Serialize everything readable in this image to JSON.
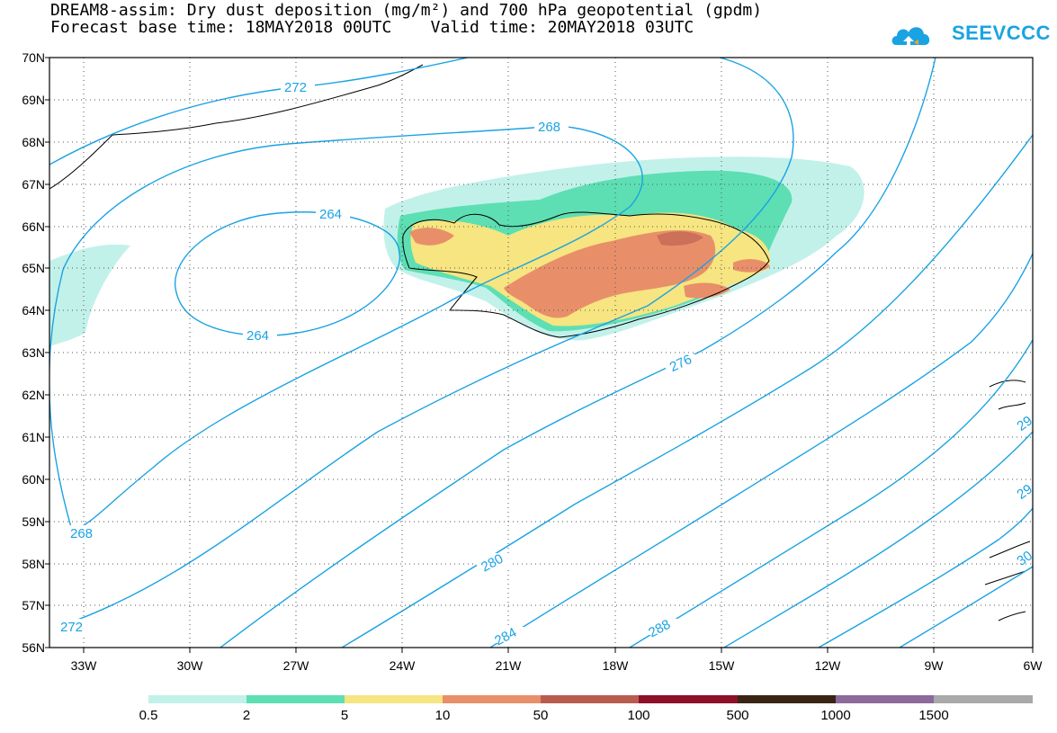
{
  "header": {
    "title_line1": "DREAM8-assim: Dry dust deposition (mg/m²) and 700 hPa geopotential (gpdm)",
    "title_line2": "Forecast base time: 18MAY2018 00UTC    Valid time: 20MAY2018 03UTC",
    "logo_text": "SEEVCCC"
  },
  "axes": {
    "lat_labels": [
      "70N",
      "69N",
      "68N",
      "67N",
      "66N",
      "65N",
      "64N",
      "63N",
      "62N",
      "61N",
      "60N",
      "59N",
      "58N",
      "57N",
      "56N"
    ],
    "lon_labels": [
      "33W",
      "30W",
      "27W",
      "24W",
      "21W",
      "18W",
      "15W",
      "12W",
      "9W",
      "6W"
    ]
  },
  "contours": {
    "labels": [
      "272",
      "268",
      "264",
      "264",
      "268",
      "276",
      "280",
      "284",
      "288",
      "272",
      "29",
      "29",
      "30"
    ]
  },
  "legend": {
    "labels": [
      "0.5",
      "2",
      "5",
      "10",
      "50",
      "100",
      "500",
      "1000",
      "1500"
    ],
    "colors": [
      "#c2f1ea",
      "#5ddfb3",
      "#f6e580",
      "#e88f6a",
      "#b95c4f",
      "#8e0f29",
      "#3a2415",
      "#8c6a9b",
      "#a9a9a9"
    ]
  }
}
